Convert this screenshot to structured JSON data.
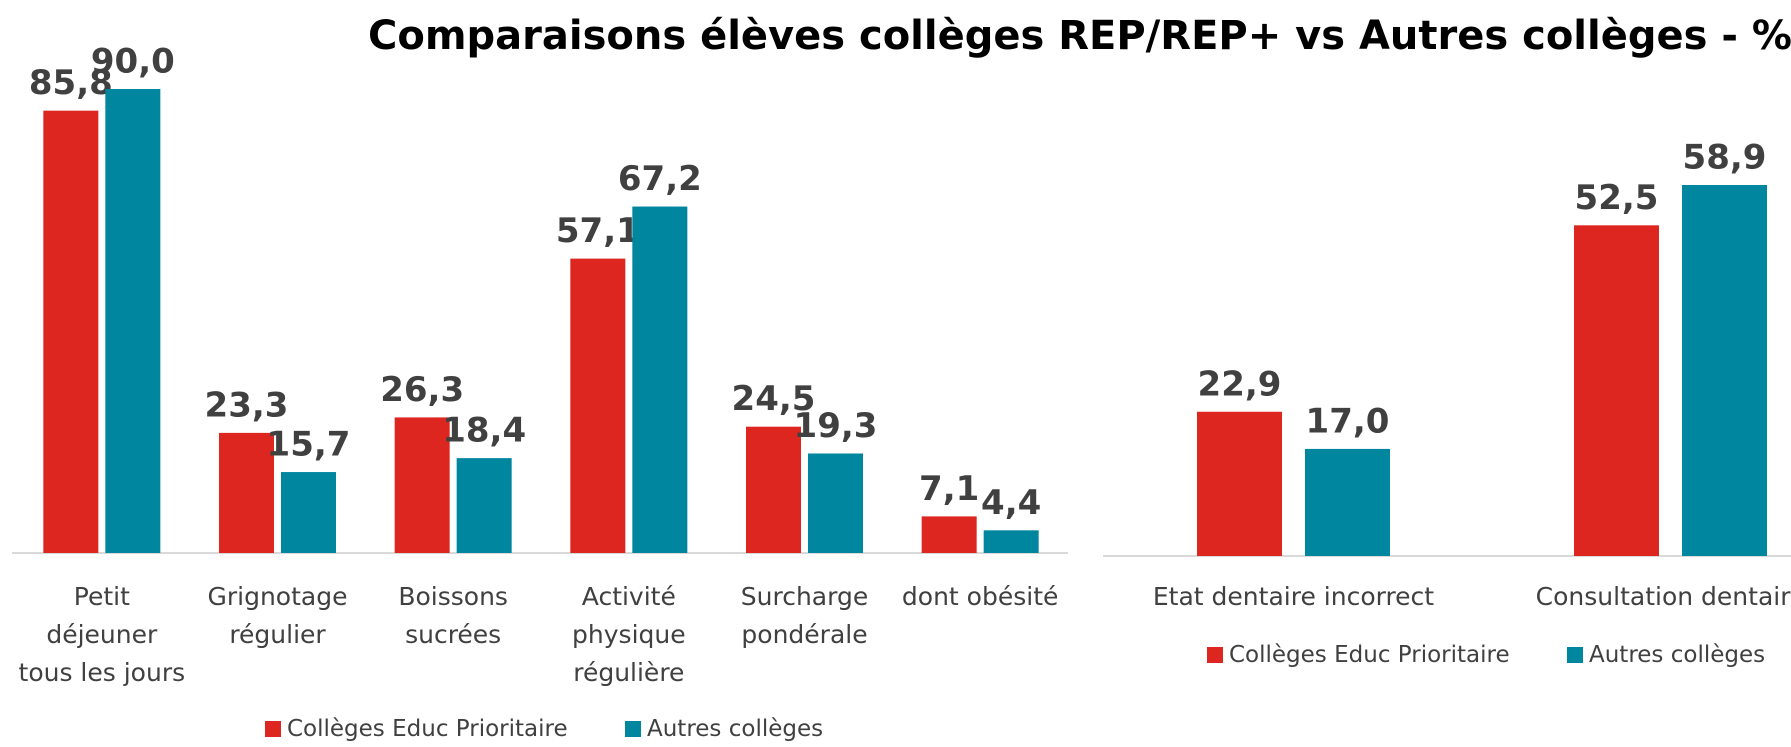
{
  "title": "Comparaisons élèves collèges REP/REP+ vs Autres collèges - %",
  "chart_data": [
    {
      "type": "bar",
      "categories": [
        "Petit déjeuner tous les jours",
        "Grignotage régulier",
        "Boissons sucrées",
        "Activité physique régulière",
        "Surcharge pondérale",
        "dont obésité"
      ],
      "series": [
        {
          "name": "Collèges Educ Prioritaire",
          "color": "#dc261f",
          "values": [
            85.8,
            23.3,
            26.3,
            57.1,
            24.5,
            7.1
          ],
          "value_labels": [
            "85,8",
            "23,3",
            "26,3",
            "57,1",
            "24,5",
            "7,1"
          ]
        },
        {
          "name": "Autres collèges",
          "color": "#00869e",
          "values": [
            90.0,
            15.7,
            18.4,
            67.2,
            19.3,
            4.4
          ],
          "value_labels": [
            "90,0",
            "15,7",
            "18,4",
            "67,2",
            "19,3",
            "4,4"
          ]
        }
      ],
      "legend": "bottom"
    },
    {
      "type": "bar",
      "categories": [
        "Etat dentaire incorrect",
        "Consultation dentaire"
      ],
      "series": [
        {
          "name": "Collèges Educ Prioritaire",
          "color": "#dc261f",
          "values": [
            22.9,
            52.5
          ],
          "value_labels": [
            "22,9",
            "52,5"
          ]
        },
        {
          "name": "Autres collèges",
          "color": "#00869e",
          "values": [
            17.0,
            58.9
          ],
          "value_labels": [
            "17,0",
            "58,9"
          ]
        }
      ],
      "legend": "bottom"
    }
  ]
}
